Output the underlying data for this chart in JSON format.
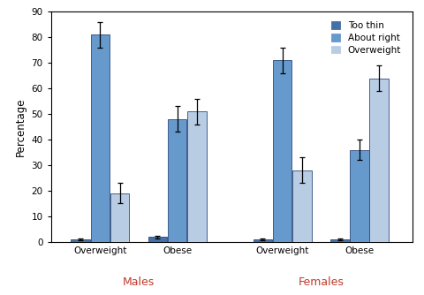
{
  "groups": [
    {
      "label": "Overweight",
      "sex": "Males"
    },
    {
      "label": "Obese",
      "sex": "Males"
    },
    {
      "label": "Overweight",
      "sex": "Females"
    },
    {
      "label": "Obese",
      "sex": "Females"
    }
  ],
  "series": [
    "Too thin",
    "About right",
    "Overweight"
  ],
  "colors": [
    "#4472a8",
    "#6699cc",
    "#b8cce4"
  ],
  "values": [
    [
      1,
      81,
      19
    ],
    [
      2,
      48,
      51
    ],
    [
      1,
      71,
      28
    ],
    [
      1,
      36,
      64
    ]
  ],
  "errors": [
    [
      0.4,
      5,
      4
    ],
    [
      0.5,
      5,
      5
    ],
    [
      0.4,
      5,
      5
    ],
    [
      0.4,
      4,
      5
    ]
  ],
  "ylabel": "Percentage",
  "ylim": [
    0,
    90
  ],
  "yticks": [
    0,
    10,
    20,
    30,
    40,
    50,
    60,
    70,
    80,
    90
  ],
  "males_label": "Males",
  "females_label": "Females",
  "sex_label_color": "#c0392b",
  "legend_labels": [
    "Too thin",
    "About right",
    "Overweight"
  ],
  "background_color": "#ffffff",
  "group_centers": [
    1.0,
    2.1,
    3.6,
    4.7
  ],
  "bar_width": 0.28,
  "xlim": [
    0.3,
    5.45
  ]
}
